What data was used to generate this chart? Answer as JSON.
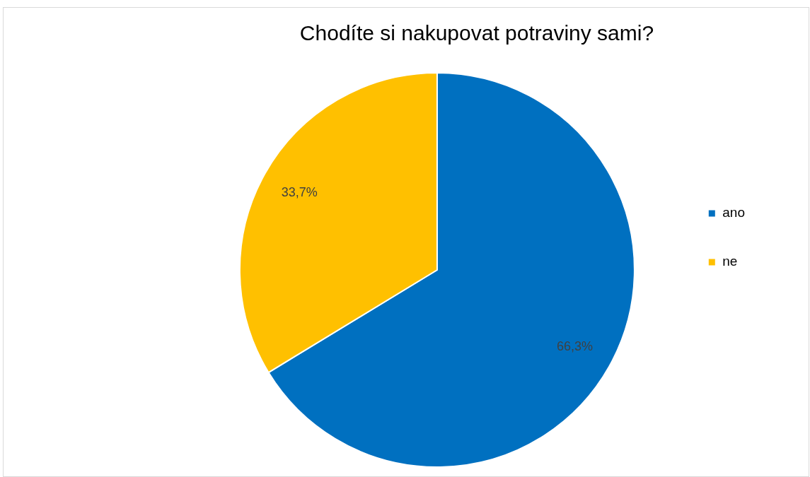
{
  "chart_data": {
    "type": "pie",
    "title": "Chodíte si nakupovat potraviny sami?",
    "categories": [
      "ano",
      "ne"
    ],
    "values": [
      66.3,
      33.7
    ],
    "colors": [
      "#0070c0",
      "#ffc000"
    ],
    "value_labels": [
      "66,3%",
      "33,7%"
    ],
    "legend": "right"
  }
}
